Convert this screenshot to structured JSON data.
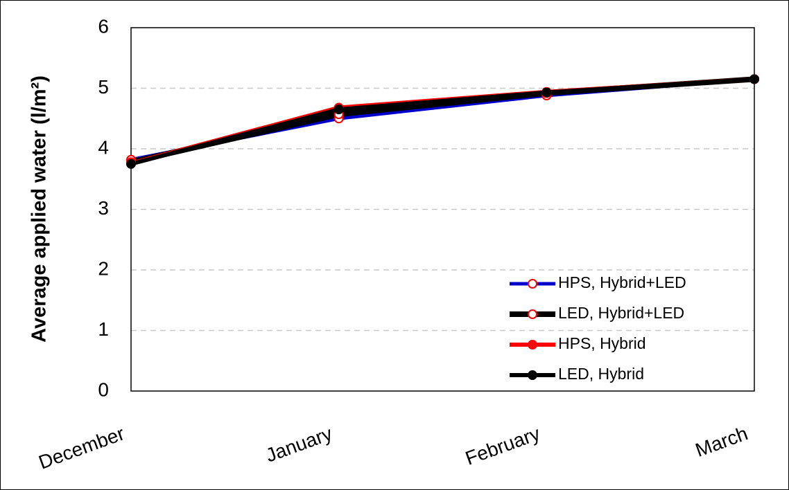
{
  "chart_data": {
    "type": "line",
    "y_label": "Average applied water (l/m²)",
    "categories": [
      "December",
      "January",
      "February",
      "March"
    ],
    "series": [
      {
        "name": "HPS, Hybrid+LED",
        "color": "#0000cc",
        "marker": "open",
        "marker_color": "#ff0000",
        "values": [
          3.82,
          4.5,
          4.88,
          5.15
        ]
      },
      {
        "name": "LED, Hybrid+LED",
        "color": "#000000",
        "marker": "open",
        "marker_color": "#ff0000",
        "values": [
          3.78,
          4.57,
          4.92,
          5.15
        ]
      },
      {
        "name": "HPS, Hybrid",
        "color": "#ff0000",
        "marker": "filled",
        "marker_color": "#ff0000",
        "values": [
          3.76,
          4.68,
          4.94,
          5.15
        ]
      },
      {
        "name": "LED, Hybrid",
        "color": "#000000",
        "marker": "filled",
        "marker_color": "#000000",
        "values": [
          3.75,
          4.65,
          4.93,
          5.15
        ]
      }
    ],
    "ylim": [
      0,
      6
    ],
    "yticks": [
      0,
      1,
      2,
      3,
      4,
      5,
      6
    ],
    "grid": true,
    "legend": "lower right"
  }
}
